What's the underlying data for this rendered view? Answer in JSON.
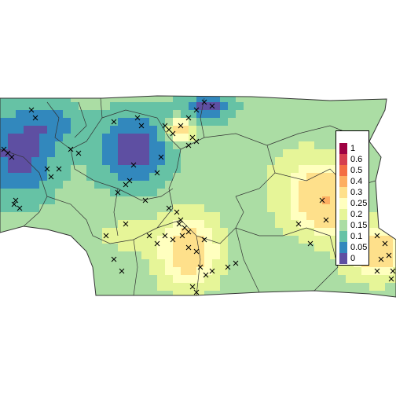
{
  "map": {
    "title": "",
    "region": "Choropleth raster of probability values with administrative boundaries and sample locations (x markers)"
  },
  "legend": {
    "entries": [
      {
        "label": "1",
        "color": "#9E0142"
      },
      {
        "label": "0.6",
        "color": "#D53E4F"
      },
      {
        "label": "0.5",
        "color": "#F46D43"
      },
      {
        "label": "0.4",
        "color": "#FDAE61"
      },
      {
        "label": "0.3",
        "color": "#FEE08B"
      },
      {
        "label": "0.25",
        "color": "#FFFFBF"
      },
      {
        "label": "0.2",
        "color": "#E6F598"
      },
      {
        "label": "0.15",
        "color": "#ABDDA4"
      },
      {
        "label": "0.1",
        "color": "#66C2A5"
      },
      {
        "label": "0.05",
        "color": "#3288BD"
      },
      {
        "label": "0",
        "color": "#5E4FA2"
      }
    ]
  },
  "colors": {
    "background": "#ffffff",
    "boundary": "#333333",
    "marker": "#000000"
  }
}
